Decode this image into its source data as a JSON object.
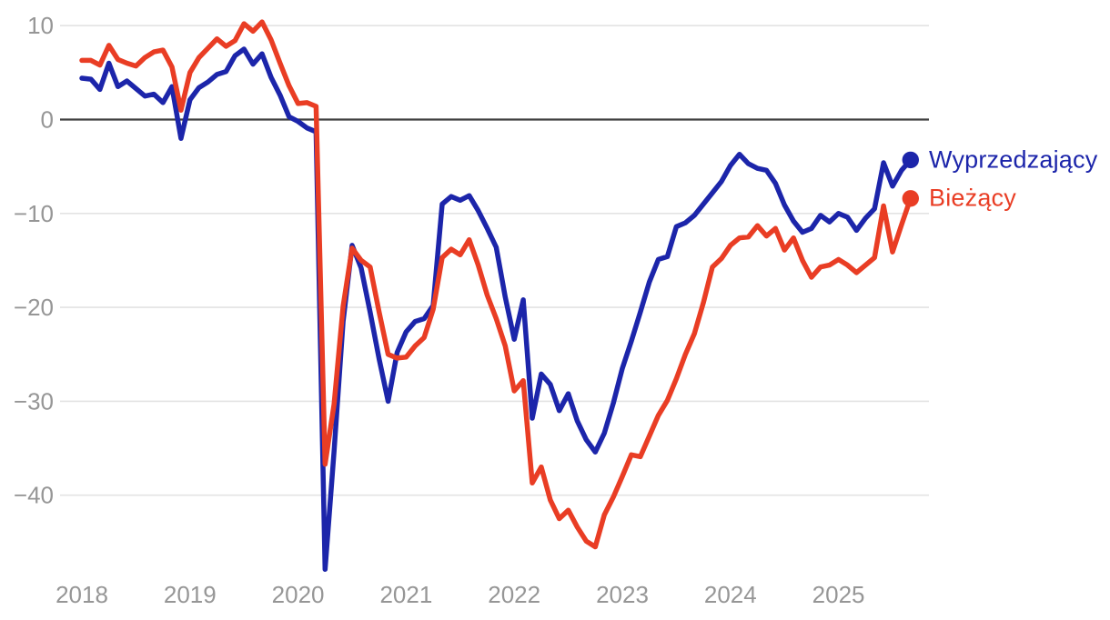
{
  "chart_data": {
    "type": "line",
    "title": "",
    "x_axis": {
      "start_year": 2018,
      "start_month": 1,
      "frequency": "monthly",
      "points": 93,
      "tick_labels": [
        "2018",
        "2019",
        "2020",
        "2021",
        "2022",
        "2023",
        "2024",
        "2025"
      ]
    },
    "y_axis": {
      "ticks": [
        10,
        0,
        -10,
        -20,
        -30,
        -40
      ],
      "tick_labels": [
        "10",
        "0",
        "−10",
        "−20",
        "−30",
        "−40"
      ],
      "range": [
        -49,
        11.5
      ]
    },
    "grid": true,
    "zero_line": true,
    "legend_position": "right-of-line-end",
    "series": [
      {
        "name": "Wyprzedzający",
        "color": "#1c25aa",
        "end_dot": true,
        "values": [
          4.4,
          4.3,
          3.2,
          6.0,
          3.5,
          4.1,
          3.3,
          2.5,
          2.7,
          1.8,
          3.5,
          -2.0,
          2.1,
          3.4,
          4.0,
          4.8,
          5.1,
          6.8,
          7.5,
          5.9,
          7.0,
          4.5,
          2.6,
          0.3,
          -0.2,
          -0.9,
          -1.3,
          -47.9,
          -35.3,
          -21.5,
          -13.4,
          -15.8,
          -20.5,
          -25.5,
          -30.0,
          -24.8,
          -22.6,
          -21.5,
          -21.2,
          -19.8,
          -9.0,
          -8.2,
          -8.6,
          -8.1,
          -9.7,
          -11.6,
          -13.6,
          -18.9,
          -23.4,
          -19.2,
          -31.8,
          -27.1,
          -28.2,
          -31.0,
          -29.2,
          -32.1,
          -34.1,
          -35.4,
          -33.4,
          -30.2,
          -26.5,
          -23.6,
          -20.5,
          -17.3,
          -14.9,
          -14.6,
          -11.4,
          -11.0,
          -10.2,
          -9.0,
          -7.8,
          -6.6,
          -4.9,
          -3.7,
          -4.7,
          -5.2,
          -5.4,
          -6.8,
          -9.1,
          -10.8,
          -12.0,
          -11.6,
          -10.2,
          -10.9,
          -10.0,
          -10.4,
          -11.8,
          -10.5,
          -9.5,
          -4.6,
          -7.1,
          -5.4,
          -4.3
        ]
      },
      {
        "name": "Bieżący",
        "color": "#e93d24",
        "end_dot": true,
        "values": [
          6.3,
          6.3,
          5.8,
          7.9,
          6.4,
          6.0,
          5.7,
          6.6,
          7.2,
          7.4,
          5.6,
          1.0,
          5.0,
          6.6,
          7.6,
          8.6,
          7.8,
          8.4,
          10.2,
          9.4,
          10.4,
          8.5,
          6.0,
          3.6,
          1.7,
          1.8,
          1.4,
          -36.7,
          -30.3,
          -19.9,
          -13.7,
          -15.0,
          -15.7,
          -20.5,
          -25.0,
          -25.4,
          -25.3,
          -24.1,
          -23.2,
          -20.2,
          -14.7,
          -13.8,
          -14.4,
          -12.8,
          -15.5,
          -18.7,
          -21.2,
          -24.1,
          -28.9,
          -27.8,
          -38.7,
          -37.0,
          -40.5,
          -42.5,
          -41.6,
          -43.4,
          -44.9,
          -45.5,
          -42.1,
          -40.2,
          -38.0,
          -35.7,
          -35.9,
          -33.7,
          -31.5,
          -29.9,
          -27.6,
          -25.0,
          -22.8,
          -19.5,
          -15.7,
          -14.8,
          -13.4,
          -12.6,
          -12.5,
          -11.3,
          -12.4,
          -11.6,
          -13.9,
          -12.6,
          -15.0,
          -16.8,
          -15.7,
          -15.5,
          -14.9,
          -15.5,
          -16.3,
          -15.5,
          -14.7,
          -9.2,
          -14.1,
          -11.2,
          -8.4
        ]
      }
    ]
  },
  "colors": {
    "grid": "#e3e3e3",
    "zero_line": "#3f3f3f",
    "tick_label": "#969696",
    "background": "#ffffff"
  }
}
